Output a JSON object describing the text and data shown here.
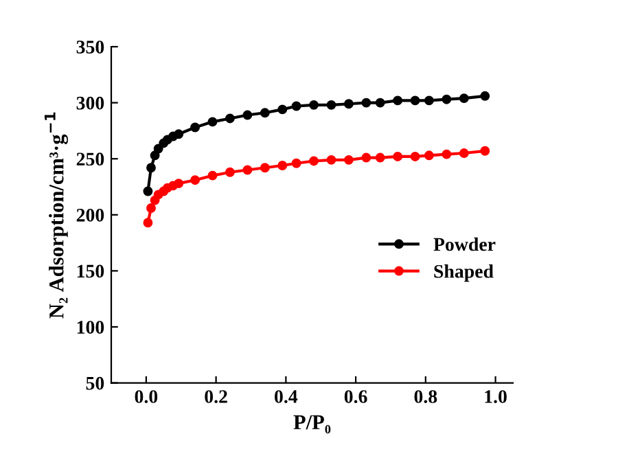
{
  "chart_data": {
    "type": "line",
    "xlabel": "P/P₀",
    "ylabel": "N₂ Adsorption/cm³·g$^{−1}$",
    "xlim": [
      -0.1,
      1.05
    ],
    "xticks": [
      {
        "value": 0.0,
        "label": "0.0"
      },
      0.2,
      0.4,
      0.6,
      0.8,
      {
        "value": 1.0,
        "label": "1.0"
      }
    ],
    "ylim": [
      50,
      350
    ],
    "yticks": [
      50,
      100,
      150,
      200,
      250,
      300,
      350
    ],
    "marker": "circle",
    "line_style": "solid",
    "grid": false,
    "legend": "bottom right",
    "series": [
      {
        "name": "Powder",
        "color": "#000000",
        "x": [
          0.005,
          0.014,
          0.025,
          0.035,
          0.05,
          0.061,
          0.077,
          0.093,
          0.14,
          0.19,
          0.24,
          0.29,
          0.34,
          0.39,
          0.43,
          0.48,
          0.53,
          0.58,
          0.63,
          0.67,
          0.72,
          0.77,
          0.81,
          0.86,
          0.91,
          0.97
        ],
        "values": [
          221,
          242,
          253,
          259,
          264,
          267,
          270,
          272,
          278,
          283,
          286,
          289,
          291,
          294,
          297,
          298,
          298,
          299,
          300,
          300,
          302,
          302,
          302,
          303,
          304,
          306
        ]
      },
      {
        "name": "Shaped",
        "color": "#ff0000",
        "x": [
          0.005,
          0.014,
          0.025,
          0.035,
          0.05,
          0.061,
          0.077,
          0.093,
          0.14,
          0.19,
          0.24,
          0.29,
          0.34,
          0.39,
          0.43,
          0.48,
          0.53,
          0.58,
          0.63,
          0.67,
          0.72,
          0.77,
          0.81,
          0.86,
          0.91,
          0.97
        ],
        "values": [
          193,
          206,
          213,
          218,
          221,
          224,
          226,
          228,
          231,
          235,
          238,
          240,
          242,
          244,
          246,
          248,
          249,
          249,
          251,
          251,
          252,
          252,
          253,
          254,
          255,
          257
        ]
      }
    ]
  }
}
